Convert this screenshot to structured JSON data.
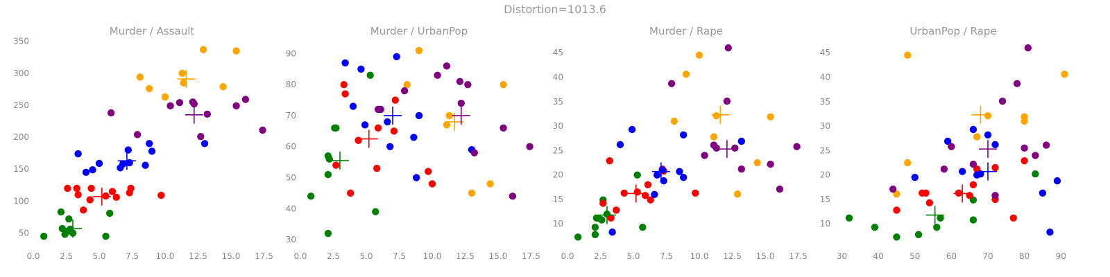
{
  "suptitle": "Distortion=1013.6",
  "colors": {
    "green": "#008000",
    "red": "#ff0000",
    "blue": "#0000ff",
    "orange": "#ffa500",
    "purple": "#800080",
    "text": "#999999"
  },
  "chart_data": [
    {
      "type": "scatter",
      "title": "Murder / Assault",
      "xticks": [
        "0.0",
        "2.5",
        "5.0",
        "7.5",
        "10.0",
        "12.5",
        "15.0",
        "17.5"
      ],
      "yticks": [
        "50",
        "100",
        "150",
        "200",
        "250",
        "300",
        "350"
      ],
      "xlim": [
        0,
        18
      ],
      "ylim": [
        30,
        355
      ],
      "series": [
        {
          "color": "green",
          "points": [
            [
              0.8,
              45
            ],
            [
              2.1,
              83
            ],
            [
              2.2,
              57
            ],
            [
              2.4,
              48
            ],
            [
              2.6,
              53
            ],
            [
              2.7,
              72
            ],
            [
              2.8,
              56
            ],
            [
              3.0,
              50
            ],
            [
              5.5,
              45
            ],
            [
              5.8,
              81
            ]
          ]
        },
        {
          "color": "red",
          "points": [
            [
              2.6,
              120
            ],
            [
              3.3,
              120
            ],
            [
              3.4,
              110
            ],
            [
              3.8,
              86
            ],
            [
              4.3,
              102
            ],
            [
              4.4,
              120
            ],
            [
              5.5,
              108
            ],
            [
              6.0,
              115
            ],
            [
              6.3,
              106
            ],
            [
              7.3,
              113
            ],
            [
              7.4,
              120
            ],
            [
              9.7,
              109
            ]
          ]
        },
        {
          "color": "blue",
          "points": [
            [
              3.4,
              174
            ],
            [
              4.0,
              145
            ],
            [
              4.5,
              149
            ],
            [
              5.0,
              159
            ],
            [
              6.6,
              152
            ],
            [
              6.8,
              158
            ],
            [
              7.2,
              180
            ],
            [
              7.3,
              160
            ],
            [
              8.5,
              156
            ],
            [
              8.8,
              190
            ],
            [
              9.0,
              178
            ],
            [
              13.0,
              190
            ]
          ]
        },
        {
          "color": "orange",
          "points": [
            [
              8.1,
              294
            ],
            [
              8.8,
              276
            ],
            [
              10.0,
              263
            ],
            [
              11.3,
              300
            ],
            [
              11.4,
              285
            ],
            [
              12.9,
              337
            ],
            [
              14.4,
              279
            ],
            [
              15.4,
              335
            ]
          ]
        },
        {
          "color": "purple",
          "points": [
            [
              5.9,
              238
            ],
            [
              7.9,
              204
            ],
            [
              10.4,
              249
            ],
            [
              11.1,
              254
            ],
            [
              12.1,
              255
            ],
            [
              12.2,
              252
            ],
            [
              12.7,
              201
            ],
            [
              13.2,
              236
            ],
            [
              15.4,
              249
            ],
            [
              16.1,
              259
            ],
            [
              17.4,
              211
            ]
          ]
        }
      ],
      "centroids": [
        {
          "color": "green",
          "x": 3.0,
          "y": 57
        },
        {
          "color": "red",
          "x": 5.2,
          "y": 107
        },
        {
          "color": "blue",
          "x": 7.1,
          "y": 163
        },
        {
          "color": "orange",
          "x": 11.6,
          "y": 291
        },
        {
          "color": "purple",
          "x": 12.2,
          "y": 235
        }
      ]
    },
    {
      "type": "scatter",
      "title": "Murder / UrbanPop",
      "xticks": [
        "0.0",
        "2.5",
        "5.0",
        "7.5",
        "10.0",
        "12.5",
        "15.0",
        "17.5"
      ],
      "yticks": [
        "30",
        "40",
        "50",
        "60",
        "70",
        "80",
        "90"
      ],
      "xlim": [
        0,
        18
      ],
      "ylim": [
        28,
        95
      ],
      "series": [
        {
          "color": "green",
          "points": [
            [
              0.8,
              44
            ],
            [
              2.1,
              32
            ],
            [
              2.1,
              51
            ],
            [
              2.1,
              57
            ],
            [
              2.2,
              56
            ],
            [
              2.6,
              66
            ],
            [
              2.7,
              66
            ],
            [
              5.3,
              83
            ],
            [
              5.7,
              39
            ]
          ]
        },
        {
          "color": "red",
          "points": [
            [
              2.7,
              54
            ],
            [
              3.3,
              80
            ],
            [
              3.4,
              77
            ],
            [
              3.8,
              45
            ],
            [
              4.4,
              62
            ],
            [
              5.8,
              53
            ],
            [
              5.9,
              66
            ],
            [
              6.1,
              72
            ],
            [
              7.1,
              65
            ],
            [
              7.2,
              75
            ],
            [
              9.7,
              52
            ],
            [
              10.0,
              48
            ]
          ]
        },
        {
          "color": "blue",
          "points": [
            [
              3.4,
              87
            ],
            [
              4.0,
              73
            ],
            [
              4.6,
              85
            ],
            [
              4.9,
              67
            ],
            [
              6.0,
              72
            ],
            [
              6.6,
              68
            ],
            [
              6.8,
              60
            ],
            [
              7.3,
              89
            ],
            [
              8.6,
              63
            ],
            [
              8.8,
              50
            ],
            [
              9.0,
              70
            ],
            [
              13.0,
              59
            ]
          ]
        },
        {
          "color": "orange",
          "points": [
            [
              8.1,
              80
            ],
            [
              9.0,
              91
            ],
            [
              11.1,
              67
            ],
            [
              11.3,
              70
            ],
            [
              13.0,
              45
            ],
            [
              14.4,
              48
            ],
            [
              15.4,
              80
            ]
          ]
        },
        {
          "color": "purple",
          "points": [
            [
              5.9,
              72
            ],
            [
              7.9,
              78
            ],
            [
              10.4,
              83
            ],
            [
              11.1,
              86
            ],
            [
              12.1,
              81
            ],
            [
              12.2,
              74
            ],
            [
              12.7,
              80
            ],
            [
              13.2,
              58
            ],
            [
              15.4,
              66
            ],
            [
              16.1,
              44
            ],
            [
              17.4,
              60
            ]
          ]
        }
      ],
      "centroids": [
        {
          "color": "green",
          "x": 3.0,
          "y": 55.5
        },
        {
          "color": "red",
          "x": 5.2,
          "y": 62.5
        },
        {
          "color": "blue",
          "x": 7.0,
          "y": 70
        },
        {
          "color": "orange",
          "x": 11.7,
          "y": 68
        },
        {
          "color": "purple",
          "x": 12.2,
          "y": 70
        }
      ]
    },
    {
      "type": "scatter",
      "title": "Murder / Rape",
      "xticks": [
        "0.0",
        "2.5",
        "5.0",
        "7.5",
        "10.0",
        "12.5",
        "15.0",
        "17.5"
      ],
      "yticks": [
        "10",
        "15",
        "20",
        "25",
        "30",
        "35",
        "40",
        "45"
      ],
      "xlim": [
        0,
        18
      ],
      "ylim": [
        5.5,
        48
      ],
      "series": [
        {
          "color": "green",
          "points": [
            [
              0.8,
              7.3
            ],
            [
              2.1,
              7.8
            ],
            [
              2.1,
              9.3
            ],
            [
              2.2,
              11.2
            ],
            [
              2.4,
              11.1
            ],
            [
              2.6,
              10.8
            ],
            [
              2.7,
              14.9
            ],
            [
              3.0,
              12.0
            ],
            [
              5.3,
              20.0
            ],
            [
              5.7,
              9.3
            ]
          ]
        },
        {
          "color": "red",
          "points": [
            [
              2.7,
              14.2
            ],
            [
              3.2,
              22.9
            ],
            [
              3.3,
              11.2
            ],
            [
              3.7,
              12.8
            ],
            [
              4.3,
              16.3
            ],
            [
              5.3,
              16.5
            ],
            [
              5.9,
              15.8
            ],
            [
              6.1,
              18.0
            ],
            [
              6.3,
              14.9
            ],
            [
              7.2,
              21.2
            ],
            [
              7.3,
              20.8
            ],
            [
              9.7,
              16.3
            ]
          ]
        },
        {
          "color": "blue",
          "points": [
            [
              3.4,
              8.3
            ],
            [
              4.0,
              26.2
            ],
            [
              4.9,
              29.3
            ],
            [
              6.6,
              16.0
            ],
            [
              6.8,
              20.0
            ],
            [
              7.2,
              21.0
            ],
            [
              7.3,
              18.8
            ],
            [
              8.5,
              20.7
            ],
            [
              8.8,
              19.5
            ],
            [
              8.8,
              28.2
            ],
            [
              13.2,
              26.9
            ]
          ]
        },
        {
          "color": "orange",
          "points": [
            [
              8.1,
              31.0
            ],
            [
              9.0,
              40.6
            ],
            [
              10.0,
              44.5
            ],
            [
              11.1,
              27.8
            ],
            [
              11.3,
              32.1
            ],
            [
              12.9,
              16.1
            ],
            [
              14.4,
              22.5
            ],
            [
              15.4,
              31.9
            ]
          ]
        },
        {
          "color": "purple",
          "points": [
            [
              7.9,
              38.7
            ],
            [
              10.4,
              24.0
            ],
            [
              11.1,
              26.1
            ],
            [
              11.3,
              25.5
            ],
            [
              12.1,
              35.1
            ],
            [
              12.2,
              46.0
            ],
            [
              12.7,
              25.5
            ],
            [
              13.2,
              21.2
            ],
            [
              15.4,
              22.2
            ],
            [
              16.1,
              17.1
            ],
            [
              17.4,
              25.8
            ]
          ]
        }
      ],
      "centroids": [
        {
          "color": "green",
          "x": 3.0,
          "y": 11.8
        },
        {
          "color": "red",
          "x": 5.2,
          "y": 16.2
        },
        {
          "color": "blue",
          "x": 7.1,
          "y": 20.7
        },
        {
          "color": "orange",
          "x": 11.6,
          "y": 32.3
        },
        {
          "color": "purple",
          "x": 12.1,
          "y": 25.3
        }
      ]
    },
    {
      "type": "scatter",
      "title": "UrbanPop / Rape",
      "xticks": [
        "30",
        "40",
        "50",
        "60",
        "70",
        "80",
        "90"
      ],
      "yticks": [
        "10",
        "15",
        "20",
        "25",
        "30",
        "35",
        "40",
        "45"
      ],
      "xlim": [
        28,
        93
      ],
      "ylim": [
        5.5,
        48
      ],
      "series": [
        {
          "color": "green",
          "points": [
            [
              32,
              11.2
            ],
            [
              39,
              9.3
            ],
            [
              45,
              7.3
            ],
            [
              51,
              7.8
            ],
            [
              56,
              9.3
            ],
            [
              57,
              11.2
            ],
            [
              66,
              10.8
            ],
            [
              66,
              14.9
            ],
            [
              83,
              20.2
            ]
          ]
        },
        {
          "color": "red",
          "points": [
            [
              45,
              12.8
            ],
            [
              52,
              16.3
            ],
            [
              53,
              16.3
            ],
            [
              54,
              14.3
            ],
            [
              62,
              16.3
            ],
            [
              65,
              15.8
            ],
            [
              66,
              18.0
            ],
            [
              67,
              21.2
            ],
            [
              72,
              21.5
            ],
            [
              72,
              15.0
            ],
            [
              77,
              11.2
            ],
            [
              80,
              22.9
            ]
          ]
        },
        {
          "color": "blue",
          "points": [
            [
              50,
              19.5
            ],
            [
              59,
              26.9
            ],
            [
              63,
              20.7
            ],
            [
              66,
              29.3
            ],
            [
              67,
              20.0
            ],
            [
              68,
              20.2
            ],
            [
              70,
              28.2
            ],
            [
              72,
              26.2
            ],
            [
              85,
              16.3
            ],
            [
              87,
              8.3
            ],
            [
              89,
              18.8
            ]
          ]
        },
        {
          "color": "orange",
          "points": [
            [
              45,
              16.1
            ],
            [
              48,
              22.5
            ],
            [
              48,
              44.5
            ],
            [
              67,
              27.8
            ],
            [
              70,
              32.1
            ],
            [
              80,
              31.0
            ],
            [
              80,
              31.9
            ],
            [
              91,
              40.6
            ]
          ]
        },
        {
          "color": "purple",
          "points": [
            [
              44,
              17.1
            ],
            [
              58,
              21.2
            ],
            [
              60,
              25.8
            ],
            [
              66,
              22.2
            ],
            [
              72,
              15.8
            ],
            [
              74,
              35.1
            ],
            [
              78,
              38.7
            ],
            [
              80,
              25.5
            ],
            [
              81,
              46.0
            ],
            [
              83,
              24.0
            ],
            [
              86,
              26.1
            ]
          ]
        }
      ],
      "centroids": [
        {
          "color": "green",
          "x": 55.5,
          "y": 11.8
        },
        {
          "color": "red",
          "x": 63,
          "y": 16.2
        },
        {
          "color": "blue",
          "x": 70,
          "y": 20.7
        },
        {
          "color": "orange",
          "x": 68,
          "y": 32.3
        },
        {
          "color": "purple",
          "x": 70,
          "y": 25.3
        }
      ]
    }
  ]
}
